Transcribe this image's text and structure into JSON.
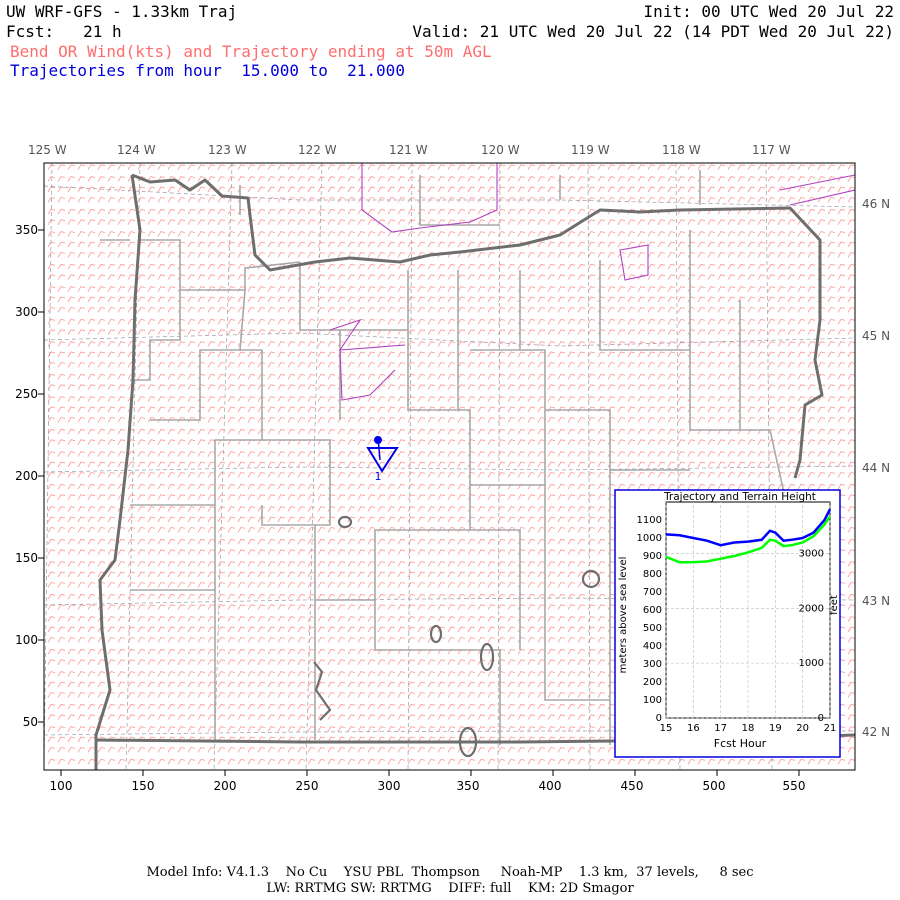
{
  "header": {
    "model_title": "UW WRF-GFS - 1.33km Traj",
    "init": "Init: 00 UTC Wed 20 Jul 22",
    "fcst": "Fcst:   21 h",
    "valid": "Valid: 21 UTC Wed 20 Jul 22 (14 PDT Wed 20 Jul 22)",
    "variable_line": "Bend OR Wind(kts) and Trajectory ending at 50m AGL",
    "trajectory_line": "Trajectories from hour  15.000 to  21.000"
  },
  "map": {
    "top_longitude_labels": [
      "125 W",
      "124 W",
      "123 W",
      "122 W",
      "121 W",
      "120 W",
      "119 W",
      "118 W",
      "117 W"
    ],
    "right_latitude_labels": [
      "46 N",
      "45 N",
      "44 N",
      "43 N",
      "42 N"
    ],
    "left_grid_labels": [
      "350",
      "300",
      "250",
      "200",
      "150",
      "100",
      "50"
    ],
    "bottom_grid_labels": [
      "100",
      "150",
      "200",
      "250",
      "300",
      "350",
      "400",
      "450",
      "500",
      "550"
    ],
    "trajectory_marker_label": "1",
    "colors": {
      "wind_barbs": "#ff8080",
      "state_border": "#707070",
      "county_lines": "#a8a8a8",
      "water": "#b040c0",
      "trajectory": "#0000ee"
    }
  },
  "inset": {
    "title": "Trajectory and Terrain Height",
    "left_axis_label": "meters above sea level",
    "right_axis_label": "feet",
    "x_axis_label": "Fcst Hour",
    "x_ticks": [
      "15",
      "16",
      "17",
      "18",
      "19",
      "20",
      "21"
    ],
    "y_ticks_m": [
      "1100",
      "1000",
      "900",
      "800",
      "700",
      "600",
      "500",
      "400",
      "300",
      "200",
      "100",
      "0"
    ],
    "y_ticks_ft": [
      "3000",
      "2000",
      "1000",
      "0"
    ]
  },
  "chart_data": {
    "type": "line",
    "title": "Trajectory and Terrain Height",
    "xlabel": "Fcst Hour",
    "ylabel": "meters above sea level",
    "xlim": [
      15,
      21
    ],
    "ylim": [
      0,
      1200
    ],
    "x": [
      15,
      15.5,
      16,
      16.5,
      17,
      17.5,
      18,
      18.5,
      18.8,
      19,
      19.3,
      19.6,
      20,
      20.4,
      20.8,
      21
    ],
    "series": [
      {
        "color": "#0000ff",
        "values": [
          1020,
          1015,
          1000,
          985,
          960,
          975,
          980,
          990,
          1040,
          1030,
          985,
          990,
          1000,
          1030,
          1100,
          1160
        ]
      },
      {
        "color": "#00ff00",
        "values": [
          895,
          865,
          865,
          870,
          885,
          900,
          920,
          945,
          990,
          985,
          955,
          960,
          975,
          1010,
          1075,
          1120
        ]
      }
    ],
    "secondary_axis": {
      "label": "feet",
      "ticks": [
        0,
        1000,
        2000,
        3000
      ]
    },
    "grid": true
  },
  "footer": {
    "line1": "Model Info: V4.1.3    No Cu    YSU PBL  Thompson     Noah-MP    1.3 km,  37 levels,     8 sec",
    "line2": "LW: RRTMG SW: RRTMG    DIFF: full    KM: 2D Smagor"
  }
}
